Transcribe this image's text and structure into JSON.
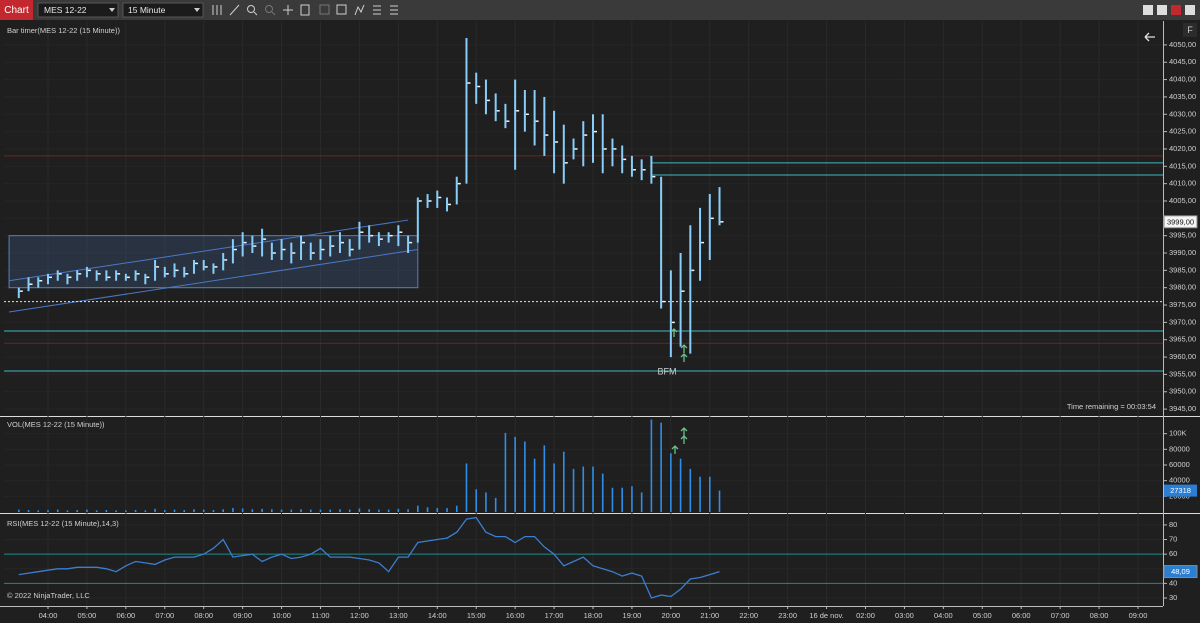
{
  "toolbar": {
    "tab": "Chart",
    "instrument": "MES 12-22",
    "interval": "15 Minute",
    "side_tab": "F"
  },
  "copyright": "© 2022 NinjaTrader, LLC",
  "chart_data": [
    {
      "type": "hlc",
      "title": "Bar timer(MES 12-22 (15 Minute))",
      "annotations": [
        "Time remaining = 00:03:54",
        "BFM"
      ],
      "color": "#87cefa",
      "x": [
        3.25,
        3.5,
        3.75,
        4,
        4.25,
        4.5,
        4.75,
        5,
        5.25,
        5.5,
        5.75,
        6,
        6.25,
        6.5,
        6.75,
        7,
        7.25,
        7.5,
        7.75,
        8,
        8.25,
        8.5,
        8.75,
        9,
        9.25,
        9.5,
        9.75,
        10,
        10.25,
        10.5,
        10.75,
        11,
        11.25,
        11.5,
        11.75,
        12,
        12.25,
        12.5,
        12.75,
        13,
        13.25,
        13.5,
        13.75,
        14,
        14.25,
        14.5,
        14.75,
        15,
        15.25,
        15.5,
        15.75,
        16,
        16.25,
        16.5,
        16.75,
        17,
        17.25,
        17.5,
        17.75,
        18,
        18.25,
        18.5,
        18.75,
        19,
        19.25,
        19.5,
        19.75,
        20,
        20.25,
        20.5,
        20.75,
        21,
        21.25
      ],
      "high": [
        3980,
        3983,
        3983,
        3984,
        3985,
        3984,
        3985,
        3986,
        3985,
        3985,
        3985,
        3984,
        3985,
        3984,
        3988,
        3986,
        3987,
        3986,
        3988,
        3988,
        3987,
        3990,
        3994,
        3996,
        3995,
        3997,
        3993,
        3994,
        3993,
        3995,
        3993,
        3994,
        3995,
        3996,
        3994,
        3999,
        3998,
        3996,
        3996,
        3998,
        3995,
        4006,
        4007,
        4008,
        4006,
        4012,
        4052,
        4042,
        4040,
        4036,
        4033,
        4040,
        4037,
        4037,
        4035,
        4031,
        4027,
        4023,
        4028,
        4030,
        4030,
        4023,
        4021,
        4018,
        4017,
        4018,
        4012,
        3985,
        3990,
        3998,
        4003,
        4007,
        4009
      ],
      "low": [
        3977,
        3979,
        3980,
        3981,
        3982,
        3981,
        3982,
        3983,
        3982,
        3982,
        3982,
        3982,
        3982,
        3981,
        3982,
        3983,
        3983,
        3983,
        3984,
        3985,
        3984,
        3985,
        3987,
        3989,
        3990,
        3989,
        3988,
        3988,
        3987,
        3988,
        3988,
        3988,
        3989,
        3990,
        3989,
        3991,
        3993,
        3992,
        3993,
        3992,
        3990,
        3993,
        4003,
        4003,
        4002,
        4004,
        4010,
        4033,
        4030,
        4028,
        4026,
        4014,
        4025,
        4021,
        4018,
        4013,
        4010,
        4017,
        4015,
        4016,
        4013,
        4015,
        4013,
        4012,
        4011,
        4010,
        3974,
        3960,
        3963,
        3961,
        3982,
        3988,
        3998
      ],
      "close": [
        3979,
        3981,
        3982,
        3983,
        3984,
        3983,
        3984,
        3985,
        3984,
        3983,
        3984,
        3983,
        3984,
        3983,
        3986,
        3984,
        3985,
        3984,
        3987,
        3986,
        3986,
        3988,
        3991,
        3993,
        3992,
        3994,
        3990,
        3991,
        3990,
        3993,
        3990,
        3991,
        3992,
        3993,
        3991,
        3996,
        3995,
        3994,
        3995,
        3996,
        3993,
        4005,
        4005,
        4006,
        4004,
        4010,
        4039,
        4038,
        4034,
        4031,
        4028,
        4031,
        4030,
        4028,
        4024,
        4022,
        4016,
        4020,
        4024,
        4025,
        4020,
        4020,
        4017,
        4014,
        4014,
        4012,
        3976,
        3970,
        3979,
        3985,
        3993,
        4000,
        3999
      ],
      "ylim": [
        3943.3,
        4056.6
      ],
      "yticks": [
        {
          "value": 3945,
          "label": "3945,00"
        },
        {
          "value": 3950,
          "label": "3950,00"
        },
        {
          "value": 3955,
          "label": "3955,00"
        },
        {
          "value": 3960,
          "label": "3960,00"
        },
        {
          "value": 3965,
          "label": "3965,00"
        },
        {
          "value": 3970,
          "label": "3970,00"
        },
        {
          "value": 3975,
          "label": "3975,00"
        },
        {
          "value": 3980,
          "label": "3980,00"
        },
        {
          "value": 3985,
          "label": "3985,00"
        },
        {
          "value": 3990,
          "label": "3990,00"
        },
        {
          "value": 3995,
          "label": "3995,00"
        },
        {
          "value": 4000,
          "label": "4000,00"
        },
        {
          "value": 4005,
          "label": "4005,00"
        },
        {
          "value": 4010,
          "label": "4010,00"
        },
        {
          "value": 4015,
          "label": "4015,00"
        },
        {
          "value": 4020,
          "label": "4020,00"
        },
        {
          "value": 4025,
          "label": "4025,00"
        },
        {
          "value": 4030,
          "label": "4030,00"
        },
        {
          "value": 4035,
          "label": "4035,00"
        },
        {
          "value": 4040,
          "label": "4040,00"
        },
        {
          "value": 4045,
          "label": "4045,00"
        },
        {
          "value": 4050,
          "label": "4050,00"
        }
      ],
      "current": {
        "value": 3999,
        "label": "3999,00"
      },
      "levels": [
        {
          "value": 4018,
          "color": "#6e2424"
        },
        {
          "value": 4016,
          "color": "#3fb8c0",
          "from": 19.5
        },
        {
          "value": 4012.5,
          "color": "#3fb8c0",
          "from": 19.5
        },
        {
          "value": 3976,
          "color": "#e8e8e8",
          "dash": true
        },
        {
          "value": 3967.5,
          "color": "#3fb8c0"
        },
        {
          "value": 3964,
          "color": "#6e2424"
        },
        {
          "value": 3956,
          "color": "#3fb8c0"
        }
      ],
      "box": {
        "x": [
          3,
          13.5
        ],
        "y": [
          3980,
          3995
        ]
      },
      "channel": [
        {
          "x": [
            3,
            13.5
          ],
          "y": [
            3973,
            3991
          ]
        },
        {
          "x": [
            3,
            13.25
          ],
          "y": [
            3982,
            3999.5
          ]
        }
      ]
    },
    {
      "type": "bar",
      "title": "VOL(MES 12-22 (15 Minute))",
      "color": "#2f8fe8",
      "x": [
        3.25,
        3.5,
        3.75,
        4,
        4.25,
        4.5,
        4.75,
        5,
        5.25,
        5.5,
        5.75,
        6,
        6.25,
        6.5,
        6.75,
        7,
        7.25,
        7.5,
        7.75,
        8,
        8.25,
        8.5,
        8.75,
        9,
        9.25,
        9.5,
        9.75,
        10,
        10.25,
        10.5,
        10.75,
        11,
        11.25,
        11.5,
        11.75,
        12,
        12.25,
        12.5,
        12.75,
        13,
        13.25,
        13.5,
        13.75,
        14,
        14.25,
        14.5,
        14.75,
        15,
        15.25,
        15.5,
        15.75,
        16,
        16.25,
        16.5,
        16.75,
        17,
        17.25,
        17.5,
        17.75,
        18,
        18.25,
        18.5,
        18.75,
        19,
        19.25,
        19.5,
        19.75,
        20,
        20.25,
        20.5,
        20.75,
        21,
        21.25
      ],
      "values": [
        3000,
        2500,
        2000,
        2500,
        3000,
        2000,
        2500,
        3000,
        2000,
        2500,
        2000,
        2000,
        2500,
        2000,
        4000,
        2500,
        3000,
        2500,
        3500,
        3000,
        2500,
        3500,
        5000,
        4500,
        3500,
        4000,
        3500,
        3000,
        3000,
        3500,
        3000,
        3000,
        3000,
        3500,
        3000,
        4500,
        3500,
        3000,
        3000,
        4000,
        3500,
        8000,
        6000,
        5000,
        5000,
        8000,
        62000,
        29000,
        25000,
        18000,
        101000,
        96000,
        90000,
        68000,
        85000,
        62000,
        77000,
        55000,
        58000,
        58000,
        49000,
        31000,
        31000,
        33000,
        25000,
        118000,
        114000,
        75000,
        68000,
        55000,
        45000,
        45000,
        27318
      ],
      "ylim": [
        0,
        120000
      ],
      "yticks": [
        20000,
        40000,
        60000,
        80000,
        {
          "value": 100000,
          "label": "100K"
        }
      ]
    },
    {
      "type": "line",
      "title": "RSI(MES 12-22 (15 Minute),14,3)",
      "color": "#3a7fd0",
      "x": [
        3.25,
        3.5,
        3.75,
        4,
        4.25,
        4.5,
        4.75,
        5,
        5.25,
        5.5,
        5.75,
        6,
        6.25,
        6.5,
        6.75,
        7,
        7.25,
        7.5,
        7.75,
        8,
        8.25,
        8.5,
        8.75,
        9,
        9.25,
        9.5,
        9.75,
        10,
        10.25,
        10.5,
        10.75,
        11,
        11.25,
        11.5,
        11.75,
        12,
        12.25,
        12.5,
        12.75,
        13,
        13.25,
        13.5,
        13.75,
        14,
        14.25,
        14.5,
        14.75,
        15,
        15.25,
        15.5,
        15.75,
        16,
        16.25,
        16.5,
        16.75,
        17,
        17.25,
        17.5,
        17.75,
        18,
        18.25,
        18.5,
        18.75,
        19,
        19.25,
        19.5,
        19.75,
        20,
        20.25,
        20.5,
        20.75,
        21,
        21.25
      ],
      "values": [
        46,
        47,
        48,
        49,
        50,
        50,
        51,
        51,
        51,
        50,
        48,
        52,
        55,
        54,
        53,
        56,
        58,
        58,
        58,
        60,
        64,
        70,
        58,
        59,
        60,
        55,
        58,
        60,
        57,
        58,
        60,
        64,
        58,
        58,
        58,
        57,
        56,
        54,
        48,
        58,
        58,
        68,
        69,
        70,
        71,
        75,
        84,
        85,
        75,
        72,
        72,
        68,
        72,
        72,
        65,
        60,
        52,
        55,
        58,
        52,
        50,
        48,
        45,
        47,
        45,
        30,
        32,
        31,
        36,
        43,
        44,
        46,
        48.09
      ],
      "ylim": [
        25.2,
        86.8
      ],
      "yticks": [
        30,
        40,
        50,
        60,
        70,
        80
      ],
      "levels": [
        {
          "value": 60,
          "color": "#1f8a8a"
        },
        {
          "value": 40,
          "color": "#1f8a8a"
        }
      ],
      "current": {
        "value": 48.09,
        "label": "48,09"
      },
      "xticks": [
        {
          "value": 4,
          "label": "04:00"
        },
        {
          "value": 5,
          "label": "05:00"
        },
        {
          "value": 6,
          "label": "06:00"
        },
        {
          "value": 7,
          "label": "07:00"
        },
        {
          "value": 8,
          "label": "08:00"
        },
        {
          "value": 9,
          "label": "09:00"
        },
        {
          "value": 10,
          "label": "10:00"
        },
        {
          "value": 11,
          "label": "11:00"
        },
        {
          "value": 12,
          "label": "12:00"
        },
        {
          "value": 13,
          "label": "13:00"
        },
        {
          "value": 14,
          "label": "14:00"
        },
        {
          "value": 15,
          "label": "15:00"
        },
        {
          "value": 16,
          "label": "16:00"
        },
        {
          "value": 17,
          "label": "17:00"
        },
        {
          "value": 18,
          "label": "18:00"
        },
        {
          "value": 19,
          "label": "19:00"
        },
        {
          "value": 20,
          "label": "20:00"
        },
        {
          "value": 21,
          "label": "21:00"
        },
        {
          "value": 22,
          "label": "22:00"
        },
        {
          "value": 23,
          "label": "23:00"
        },
        {
          "value": 24,
          "label": "16 de nov."
        },
        {
          "value": 26,
          "label": "02:00"
        },
        {
          "value": 27,
          "label": "03:00"
        },
        {
          "value": 28,
          "label": "04:00"
        },
        {
          "value": 29,
          "label": "05:00"
        },
        {
          "value": 30,
          "label": "06:00"
        },
        {
          "value": 31,
          "label": "07:00"
        },
        {
          "value": 32,
          "label": "08:00"
        },
        {
          "value": 33,
          "label": "09:00"
        }
      ]
    }
  ]
}
